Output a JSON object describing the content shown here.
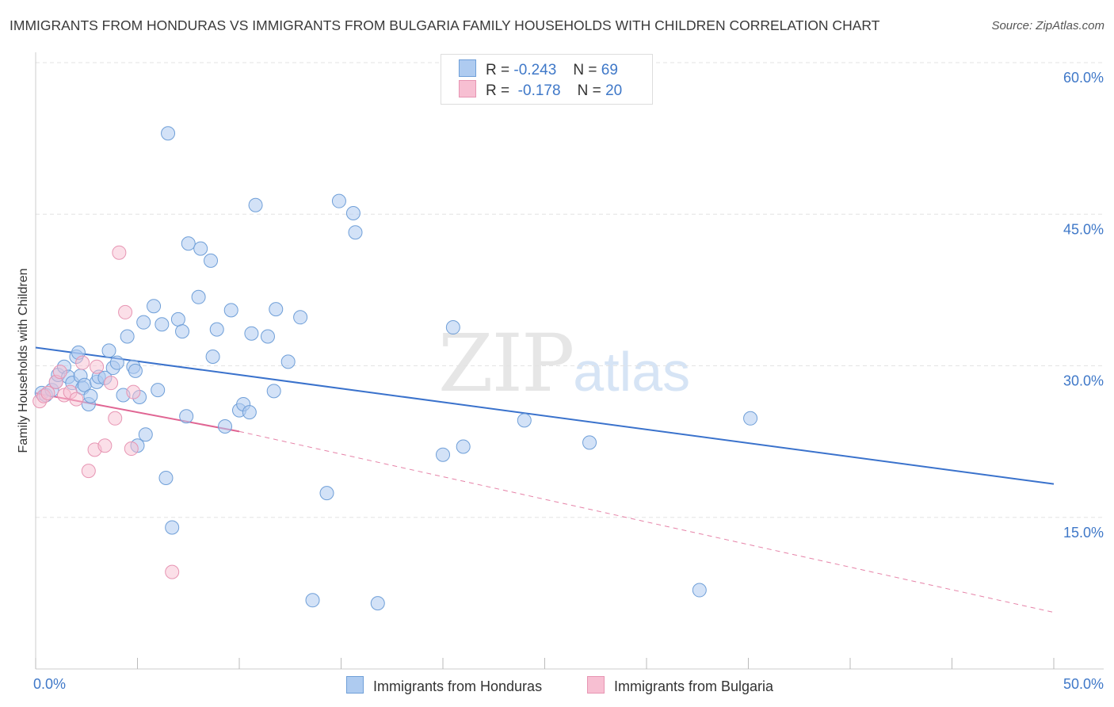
{
  "colors": {
    "honduras_fill": "#aecbf0",
    "honduras_stroke": "#6f9fd8",
    "honduras_line": "#3a72cc",
    "bulgaria_fill": "#f7bfd2",
    "bulgaria_stroke": "#e795b3",
    "bulgaria_line": "#e06593",
    "axis_label": "#3f78c8",
    "grid": "#e3e3e3"
  },
  "chart_data": {
    "type": "scatter",
    "title": "IMMIGRANTS FROM HONDURAS VS IMMIGRANTS FROM BULGARIA FAMILY HOUSEHOLDS WITH CHILDREN CORRELATION CHART",
    "source": "Source: ZipAtlas.com",
    "watermark": {
      "zip": "ZIP",
      "atlas": "atlas"
    },
    "xlabel": "",
    "ylabel": "Family Households with Children",
    "xlim": [
      0,
      50
    ],
    "ylim": [
      0,
      60
    ],
    "x_tick_labels": [
      "0.0%",
      "50.0%"
    ],
    "y_ticks": [
      15,
      30,
      45,
      60
    ],
    "y_tick_labels": [
      "15.0%",
      "30.0%",
      "45.0%",
      "60.0%"
    ],
    "legend": {
      "r_label": "R =",
      "n_label": "N =",
      "entries": [
        {
          "r": "-0.243",
          "n": "69"
        },
        {
          "r": "-0.178",
          "n": "20"
        }
      ]
    },
    "series": [
      {
        "name": "Immigrants from Honduras",
        "points": [
          [
            0.3,
            27.3
          ],
          [
            0.5,
            27.1
          ],
          [
            0.8,
            27.6
          ],
          [
            1.0,
            28.4
          ],
          [
            1.1,
            29.1
          ],
          [
            1.4,
            29.9
          ],
          [
            1.6,
            28.9
          ],
          [
            1.8,
            28.3
          ],
          [
            2.0,
            30.9
          ],
          [
            2.1,
            31.3
          ],
          [
            2.2,
            29.0
          ],
          [
            2.3,
            27.8
          ],
          [
            2.4,
            28.1
          ],
          [
            2.6,
            26.2
          ],
          [
            2.7,
            27.0
          ],
          [
            3.0,
            28.4
          ],
          [
            3.1,
            28.9
          ],
          [
            3.4,
            28.8
          ],
          [
            3.6,
            31.5
          ],
          [
            3.8,
            29.8
          ],
          [
            4.0,
            30.3
          ],
          [
            4.3,
            27.1
          ],
          [
            4.5,
            32.9
          ],
          [
            4.8,
            29.9
          ],
          [
            4.9,
            29.5
          ],
          [
            5.0,
            22.1
          ],
          [
            5.1,
            26.9
          ],
          [
            5.3,
            34.3
          ],
          [
            5.4,
            23.2
          ],
          [
            5.8,
            35.9
          ],
          [
            6.0,
            27.6
          ],
          [
            6.2,
            34.1
          ],
          [
            6.4,
            18.9
          ],
          [
            6.5,
            53.0
          ],
          [
            6.7,
            14.0
          ],
          [
            7.0,
            34.6
          ],
          [
            7.2,
            33.4
          ],
          [
            7.4,
            25.0
          ],
          [
            7.5,
            42.1
          ],
          [
            8.0,
            36.8
          ],
          [
            8.1,
            41.6
          ],
          [
            8.6,
            40.4
          ],
          [
            8.7,
            30.9
          ],
          [
            8.9,
            33.6
          ],
          [
            9.3,
            24.0
          ],
          [
            9.6,
            35.5
          ],
          [
            10.0,
            25.6
          ],
          [
            10.2,
            26.2
          ],
          [
            10.5,
            25.4
          ],
          [
            10.6,
            33.2
          ],
          [
            10.8,
            45.9
          ],
          [
            11.4,
            32.9
          ],
          [
            11.7,
            27.5
          ],
          [
            11.8,
            35.6
          ],
          [
            12.4,
            30.4
          ],
          [
            13.0,
            34.8
          ],
          [
            13.6,
            6.8
          ],
          [
            14.3,
            17.4
          ],
          [
            14.9,
            46.3
          ],
          [
            15.6,
            45.1
          ],
          [
            15.7,
            43.2
          ],
          [
            16.8,
            6.5
          ],
          [
            20.0,
            21.2
          ],
          [
            20.5,
            33.8
          ],
          [
            21.0,
            22.0
          ],
          [
            24.0,
            24.6
          ],
          [
            27.2,
            22.4
          ],
          [
            32.6,
            7.8
          ],
          [
            35.1,
            24.8
          ]
        ],
        "trend": {
          "x": [
            0,
            50
          ],
          "y": [
            31.8,
            18.3
          ]
        }
      },
      {
        "name": "Immigrants from Bulgaria",
        "points": [
          [
            0.2,
            26.5
          ],
          [
            0.4,
            27.0
          ],
          [
            0.6,
            27.3
          ],
          [
            1.0,
            28.4
          ],
          [
            1.2,
            29.4
          ],
          [
            1.4,
            27.1
          ],
          [
            1.7,
            27.4
          ],
          [
            2.0,
            26.7
          ],
          [
            2.3,
            30.3
          ],
          [
            2.6,
            19.6
          ],
          [
            2.9,
            21.7
          ],
          [
            3.0,
            29.9
          ],
          [
            3.4,
            22.1
          ],
          [
            3.7,
            28.3
          ],
          [
            3.9,
            24.8
          ],
          [
            4.1,
            41.2
          ],
          [
            4.4,
            35.3
          ],
          [
            4.7,
            21.8
          ],
          [
            4.8,
            27.4
          ],
          [
            6.7,
            9.6
          ]
        ],
        "trend": {
          "x": [
            0,
            10
          ],
          "y": [
            27.3,
            23.5
          ]
        },
        "trend_extension": {
          "x": [
            10,
            50
          ],
          "y": [
            23.5,
            5.6
          ]
        }
      }
    ]
  }
}
